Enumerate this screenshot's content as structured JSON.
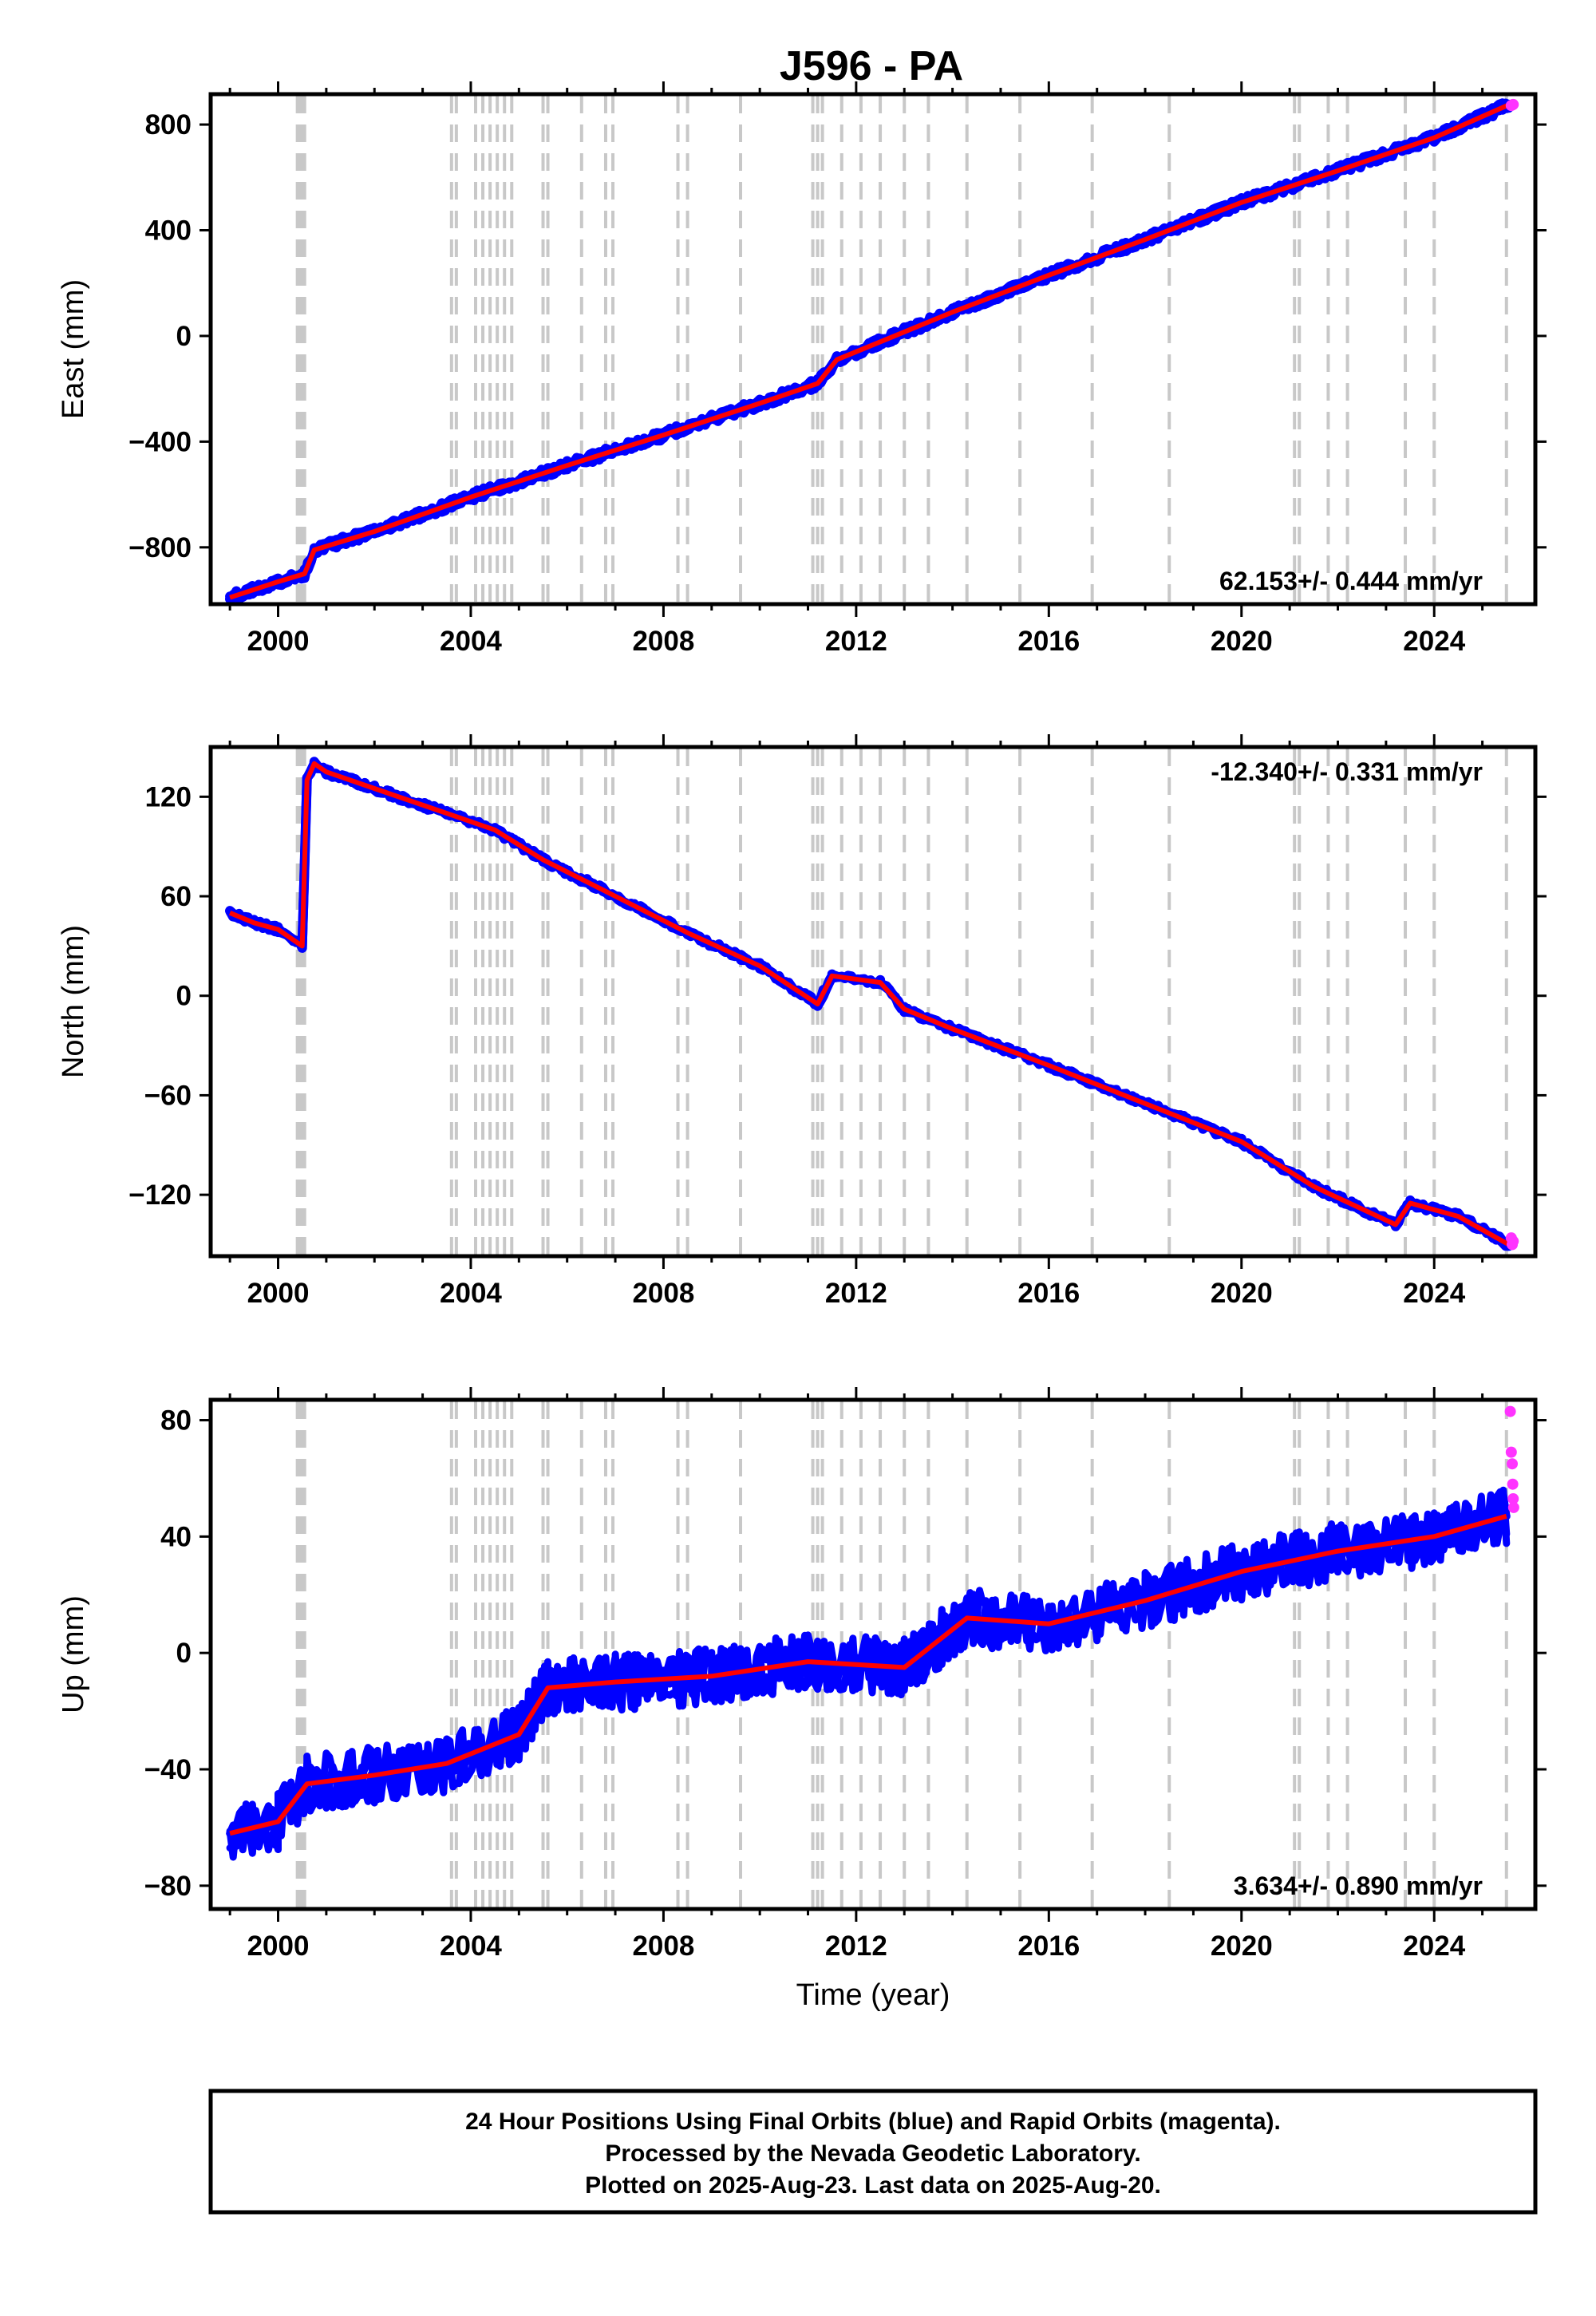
{
  "title": "J596 - PA",
  "chart_data": [
    {
      "type": "scatter",
      "ylabel": "East (mm)",
      "xlim": [
        1998.6,
        2026.1
      ],
      "ylim": [
        -1015,
        915
      ],
      "xticks": [
        "2000",
        "2004",
        "2008",
        "2012",
        "2016",
        "2020",
        "2024"
      ],
      "yticks": [
        "800",
        "400",
        "0",
        "−400",
        "−800"
      ],
      "ytick_values": [
        800,
        400,
        0,
        -400,
        -800
      ],
      "rate_text": "62.153+/- 0.444 mm/yr",
      "rate_position": "bottom-right",
      "series": [
        {
          "color": "#0000ff",
          "x": [
            1999.0,
            2000.0,
            2000.55,
            2000.75,
            2002.0,
            2004.0,
            2006.0,
            2008.0,
            2010.0,
            2011.2,
            2011.6,
            2014.0,
            2016.0,
            2018.0,
            2020.0,
            2022.0,
            2024.0,
            2025.55
          ],
          "y": [
            -990,
            -930,
            -900,
            -810,
            -740,
            -610,
            -490,
            -375,
            -255,
            -180,
            -90,
            90,
            230,
            365,
            505,
            625,
            750,
            875
          ]
        },
        {
          "color": "#ff0000",
          "x": [
            1999.0,
            2000.0,
            2000.55,
            2000.75,
            2002.0,
            2004.0,
            2006.0,
            2008.0,
            2010.0,
            2011.2,
            2011.6,
            2014.0,
            2016.0,
            2018.0,
            2020.0,
            2022.0,
            2024.0,
            2025.55
          ],
          "y": [
            -990,
            -930,
            -900,
            -810,
            -740,
            -610,
            -490,
            -375,
            -255,
            -180,
            -90,
            90,
            230,
            365,
            505,
            625,
            750,
            875
          ]
        },
        {
          "color": "#ff33ff",
          "x": [
            2025.6,
            2025.62,
            2025.64
          ],
          "y": [
            872,
            874,
            876
          ]
        }
      ]
    },
    {
      "type": "scatter",
      "ylabel": "North (mm)",
      "xlim": [
        1998.6,
        2026.1
      ],
      "ylim": [
        -157,
        150
      ],
      "xticks": [
        "2000",
        "2004",
        "2008",
        "2012",
        "2016",
        "2020",
        "2024"
      ],
      "yticks": [
        "120",
        "60",
        "0",
        "−60",
        "−120"
      ],
      "ytick_values": [
        120,
        60,
        0,
        -60,
        -120
      ],
      "rate_text": "-12.340+/- 0.331 mm/yr",
      "rate_position": "top-right",
      "series": [
        {
          "color": "#0000ff",
          "x": [
            1999.0,
            1999.5,
            2000.0,
            2000.5,
            2000.6,
            2000.75,
            2001.0,
            2002.0,
            2003.5,
            2004.5,
            2005.5,
            2007.0,
            2008.5,
            2010.0,
            2011.2,
            2011.5,
            2012.5,
            2013.0,
            2014.0,
            2016.0,
            2018.0,
            2020.0,
            2021.5,
            2023.2,
            2023.5,
            2024.5,
            2025.55
          ],
          "y": [
            50,
            44,
            40,
            30,
            130,
            140,
            135,
            125,
            110,
            100,
            82,
            60,
            38,
            18,
            -5,
            12,
            8,
            -8,
            -20,
            -42,
            -65,
            -88,
            -115,
            -138,
            -125,
            -133,
            -150
          ]
        },
        {
          "color": "#ff0000",
          "x": [
            1999.0,
            1999.5,
            2000.0,
            2000.5,
            2000.6,
            2000.75,
            2001.0,
            2002.0,
            2003.5,
            2004.5,
            2005.5,
            2007.0,
            2008.5,
            2010.0,
            2011.2,
            2011.5,
            2012.5,
            2013.0,
            2014.0,
            2016.0,
            2018.0,
            2020.0,
            2021.5,
            2023.2,
            2023.5,
            2024.5,
            2025.55
          ],
          "y": [
            50,
            44,
            40,
            30,
            130,
            140,
            135,
            125,
            110,
            100,
            82,
            60,
            38,
            18,
            -5,
            12,
            8,
            -8,
            -20,
            -42,
            -65,
            -88,
            -115,
            -138,
            -125,
            -133,
            -150
          ]
        },
        {
          "color": "#ff33ff",
          "x": [
            2025.6,
            2025.62,
            2025.64
          ],
          "y": [
            -146,
            -150,
            -148
          ]
        }
      ]
    },
    {
      "type": "scatter",
      "ylabel": "Up (mm)",
      "xlabel": "Time (year)",
      "xlim": [
        1998.6,
        2026.1
      ],
      "ylim": [
        -88,
        87
      ],
      "xticks": [
        "2000",
        "2004",
        "2008",
        "2012",
        "2016",
        "2020",
        "2024"
      ],
      "yticks": [
        "80",
        "40",
        "0",
        "−40",
        "−80"
      ],
      "ytick_values": [
        80,
        40,
        0,
        -40,
        -80
      ],
      "rate_text": "3.634+/- 0.890 mm/yr",
      "rate_position": "bottom-right",
      "series": [
        {
          "color": "#0000ff",
          "x": [
            1999.0,
            2000.0,
            2000.6,
            2002.0,
            2003.5,
            2005.0,
            2005.6,
            2007.0,
            2009.0,
            2011.0,
            2013.0,
            2014.3,
            2016.0,
            2018.0,
            2020.0,
            2022.0,
            2024.0,
            2025.5
          ],
          "y": [
            -62,
            -58,
            -45,
            -42,
            -38,
            -28,
            -12,
            -10,
            -8,
            -3,
            -5,
            12,
            10,
            18,
            28,
            35,
            40,
            47
          ]
        },
        {
          "color": "#ff0000",
          "x": [
            1999.0,
            2000.0,
            2000.6,
            2002.0,
            2003.5,
            2005.0,
            2005.6,
            2007.0,
            2009.0,
            2011.0,
            2013.0,
            2014.3,
            2016.0,
            2018.0,
            2020.0,
            2022.0,
            2024.0,
            2025.5
          ],
          "y": [
            -62,
            -58,
            -45,
            -42,
            -38,
            -28,
            -12,
            -10,
            -8,
            -3,
            -5,
            12,
            10,
            18,
            28,
            35,
            40,
            47
          ]
        },
        {
          "color": "#ff33ff",
          "x": [
            2025.58,
            2025.6,
            2025.62,
            2025.63,
            2025.64,
            2025.65
          ],
          "y": [
            83,
            69,
            65,
            58,
            53,
            50
          ]
        }
      ]
    }
  ],
  "vertical_lines": [
    2000.4,
    2000.45,
    2000.5,
    2000.55,
    2003.6,
    2003.7,
    2004.1,
    2004.25,
    2004.4,
    2004.55,
    2004.7,
    2004.85,
    2005.5,
    2005.6,
    2006.3,
    2006.8,
    2006.95,
    2008.3,
    2008.5,
    2009.6,
    2011.1,
    2011.2,
    2011.3,
    2011.7,
    2012.1,
    2012.5,
    2013.0,
    2013.5,
    2014.3,
    2015.4,
    2016.9,
    2018.5,
    2021.1,
    2021.2,
    2021.8,
    2022.2,
    2023.4,
    2024.0,
    2025.5
  ],
  "footer": {
    "line1": "24 Hour Positions Using Final Orbits (blue) and Rapid Orbits (magenta).",
    "line2": "Processed by the Nevada Geodetic Laboratory.",
    "line3": "Plotted on 2025-Aug-23. Last data on 2025-Aug-20."
  }
}
